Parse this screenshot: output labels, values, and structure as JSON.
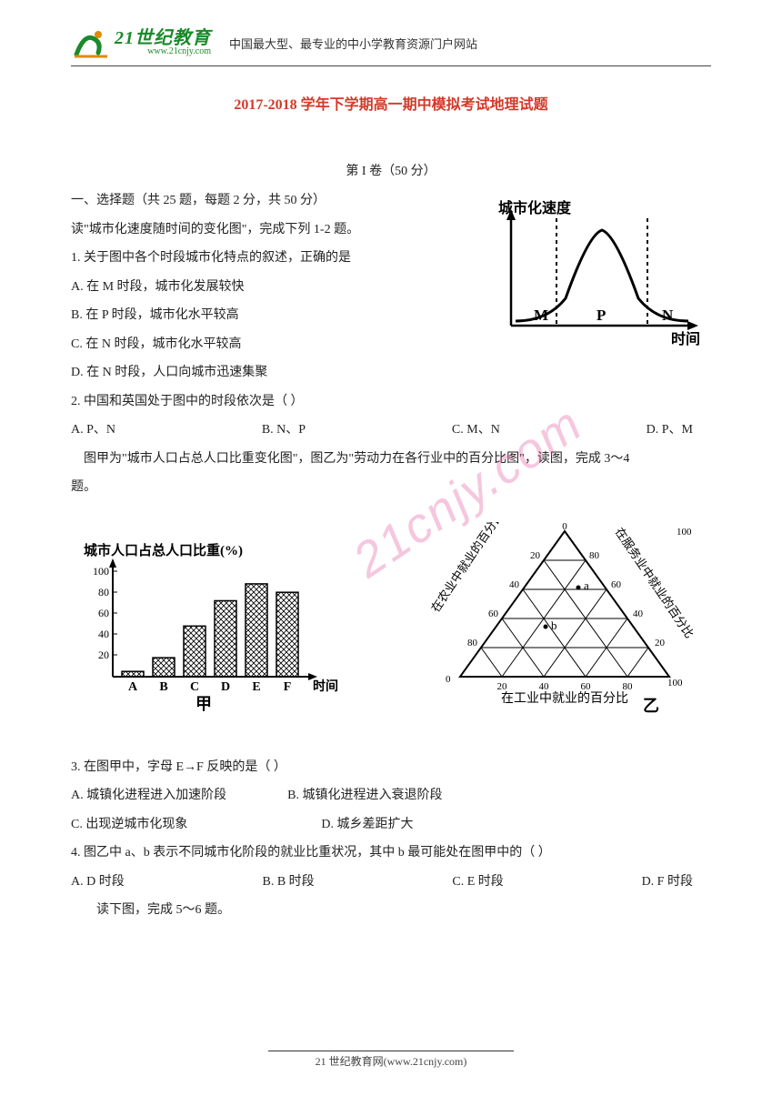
{
  "header": {
    "logo_main": "21世纪教育",
    "logo_sub": "www.21cnjy.com",
    "subtitle": "中国最大型、最专业的中小学教育资源门户网站"
  },
  "title": "2017-2018 学年下学期高一期中模拟考试地理试题",
  "section1_label": "第 I 卷（50 分）",
  "intro1": "一、选择题（共 25 题，每题 2 分，共 50 分）",
  "intro2": "读\"城市化速度随时间的变化图\"，完成下列 1-2 题。",
  "q1": {
    "stem": "1. 关于图中各个时段城市化特点的叙述，正确的是",
    "paren": "（    ）",
    "a": "A. 在 M 时段，城市化发展较快",
    "b": "B. 在 P 时段，城市化水平较高",
    "c": "C. 在 N 时段，城市化水平较高",
    "d": "D. 在 N 时段，人口向城市迅速集聚"
  },
  "q2": {
    "stem": "2. 中国和英国处于图中的时段依次是（      ）",
    "a": "A. P、N",
    "b": "B. N、P",
    "c": "C. M、N",
    "d": "D. P、M"
  },
  "bridge34_a": "图甲为\"城市人口占总人口比重变化图\"，图乙为\"劳动力在各行业中的百分比图\"，读图，完成 3～4",
  "bridge34_b": "题。",
  "q3": {
    "stem": "3. 在图甲中，字母 E→F 反映的是（      ）",
    "a": "A. 城镇化进程进入加速阶段",
    "b": "B. 城镇化进程进入衰退阶段",
    "c": "C. 出现逆城市化现象",
    "d": "D. 城乡差距扩大"
  },
  "q4": {
    "stem": "4. 图乙中 a、b 表示不同城市化阶段的就业比重状况，其中 b 最可能处在图甲中的（     ）",
    "a": "A. D 时段",
    "b": "B. B 时段",
    "c": "C. E 时段",
    "d": "D. F 时段"
  },
  "bridge56": "读下图，完成 5～6 题。",
  "footer": "21 世纪教育网(www.21cnjy.com)",
  "watermark": "21cnjy.com",
  "curve_chart": {
    "type": "line",
    "ylabel": "城市化速度",
    "xlabel": "时间",
    "labels": [
      "M",
      "P",
      "N"
    ],
    "dash_x": [
      0.28,
      0.72
    ],
    "curve_color": "#000000",
    "axis_color": "#000000",
    "line_width": 2.2
  },
  "bar_chart": {
    "type": "bar",
    "title": "城市人口占总人口比重(%)",
    "caption": "甲",
    "categories": [
      "A",
      "B",
      "C",
      "D",
      "E",
      "F"
    ],
    "xlabel": "时间",
    "values": [
      5,
      18,
      48,
      72,
      88,
      80
    ],
    "ylim": [
      0,
      100
    ],
    "yticks": [
      20,
      40,
      60,
      80,
      100
    ],
    "bar_fill": "#ffffff",
    "bar_stroke": "#000000",
    "hatch": "crosshatch"
  },
  "ternary_chart": {
    "type": "ternary",
    "caption": "乙",
    "axis_left": "在农业中就业的百分比",
    "axis_right": "在服务业中就业的百分比",
    "axis_bottom": "在工业中就业的百分比",
    "ticks": [
      0,
      20,
      40,
      60,
      80,
      100
    ],
    "points": {
      "a": {
        "agri": 20,
        "ind": 30,
        "serv": 50
      },
      "b": {
        "agri": 55,
        "ind": 25,
        "serv": 20
      }
    },
    "line_color": "#000000"
  },
  "colors": {
    "title": "#d33a2a",
    "brand": "#1a8a2a",
    "text": "#222222",
    "watermark": "rgba(225,80,155,0.32)"
  }
}
